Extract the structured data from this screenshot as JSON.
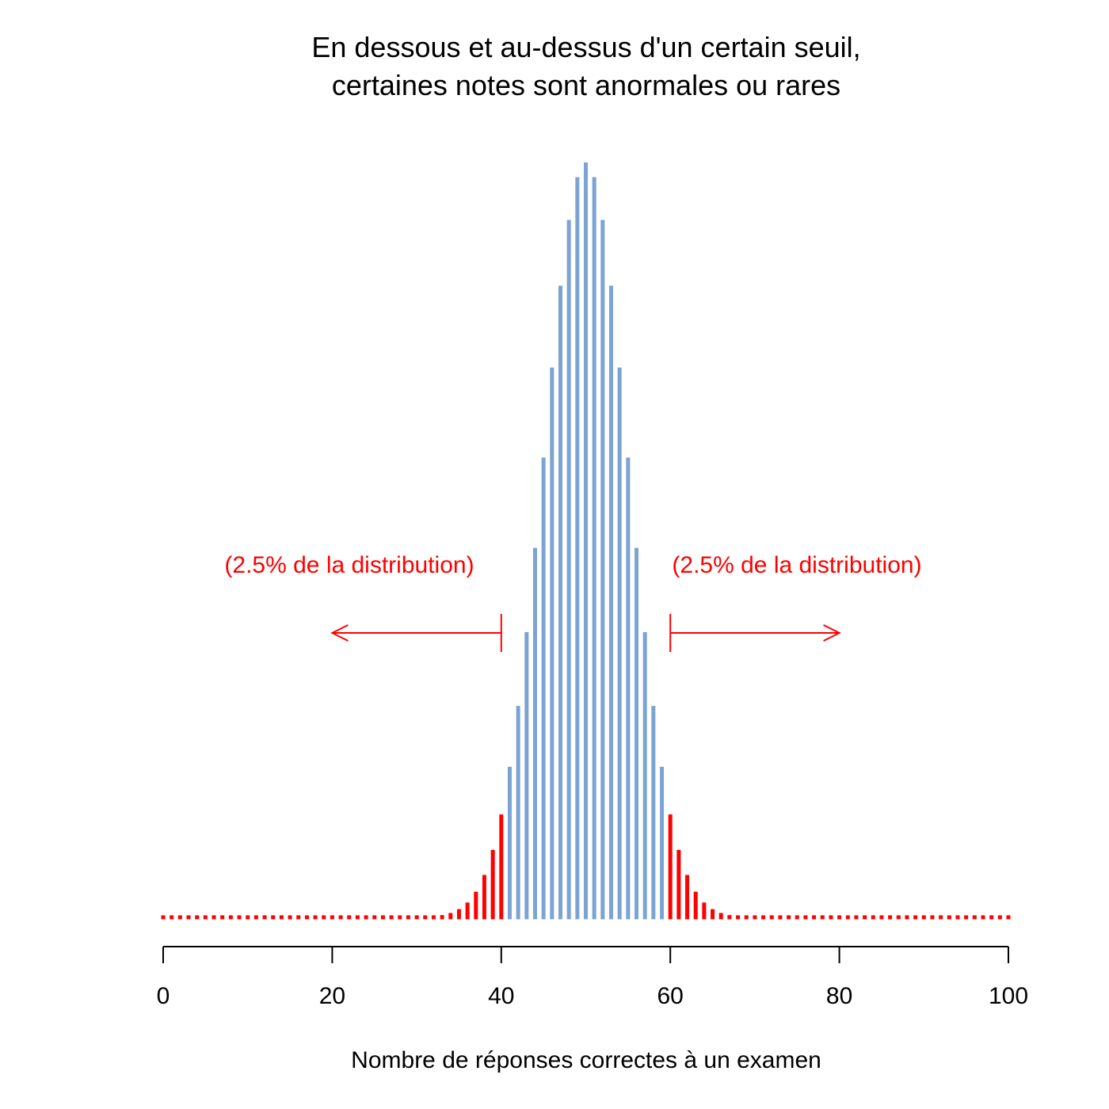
{
  "chart_data": {
    "type": "bar",
    "title_lines": [
      "En dessous et au-dessus d'un certain seuil,",
      "certaines notes sont anormales ou rares"
    ],
    "xlabel": "Nombre de réponses correctes à un examen",
    "ylabel": "",
    "xlim": [
      0,
      100
    ],
    "x_ticks": [
      0,
      20,
      40,
      60,
      80,
      100
    ],
    "x_tick_labels": [
      "0",
      "20",
      "40",
      "60",
      "80",
      "100"
    ],
    "distribution": {
      "family": "binomial",
      "n": 100,
      "p": 0.5
    },
    "normal_range": [
      41,
      59
    ],
    "colors": {
      "normal": "#7BA3D4",
      "tail": "#FF0000",
      "axis": "#000000"
    },
    "annotations": [
      {
        "text": "(2.5% de la distribution)",
        "side": "left",
        "arrow_from": 40,
        "arrow_to": 20
      },
      {
        "text": "(2.5% de la distribution)",
        "side": "right",
        "arrow_from": 60,
        "arrow_to": 80
      }
    ]
  }
}
